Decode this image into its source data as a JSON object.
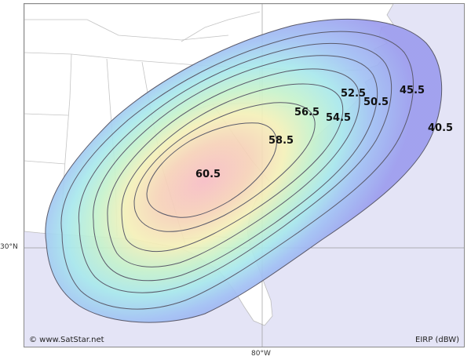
{
  "map": {
    "lat_label": "30°N",
    "lon_label": "80°W",
    "credit": "© www.SatStar.net",
    "legend_label": "EIRP (dBW)"
  },
  "contours": [
    {
      "id": "c40_5",
      "label": "40.5",
      "color": "#a8a8f4"
    },
    {
      "id": "c45_5",
      "label": "45.5",
      "color": "#9ab4f4"
    },
    {
      "id": "c50_5",
      "label": "50.5",
      "color": "#9edcf0"
    },
    {
      "id": "c52_5",
      "label": "52.5",
      "color": "#b4f0e6"
    },
    {
      "id": "c54_5",
      "label": "54.5",
      "color": "#e6f6be"
    },
    {
      "id": "c56_5",
      "label": "56.5",
      "color": "#f6e6b6"
    },
    {
      "id": "c58_5",
      "label": "58.5",
      "color": "#f6cebe"
    },
    {
      "id": "c60_5",
      "label": "60.5",
      "color": "#f6c0c0"
    }
  ],
  "colors": {
    "ocean": "#e4e4f6",
    "land": "#ffffff",
    "border": "#bdbdbd",
    "contour_line": "#5a5a6a",
    "graticule": "#a0a0a0"
  }
}
